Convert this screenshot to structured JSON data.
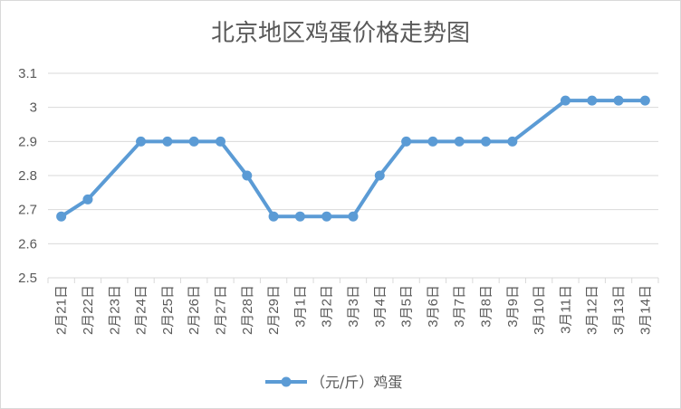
{
  "chart_data": {
    "type": "line",
    "title": "北京地区鸡蛋价格走势图",
    "xlabel": "",
    "ylabel": "",
    "categories": [
      "2月21日",
      "2月22日",
      "2月23日",
      "2月24日",
      "2月25日",
      "2月26日",
      "2月27日",
      "2月28日",
      "2月29日",
      "3月1日",
      "3月2日",
      "3月3日",
      "3月4日",
      "3月5日",
      "3月6日",
      "3月7日",
      "3月8日",
      "3月9日",
      "3月10日",
      "3月11日",
      "3月12日",
      "3月13日",
      "3月14日"
    ],
    "series": [
      {
        "name": "（元/斤）鸡蛋",
        "values": [
          2.68,
          2.73,
          null,
          2.9,
          2.9,
          2.9,
          2.9,
          2.8,
          2.68,
          2.68,
          2.68,
          2.68,
          2.8,
          2.9,
          2.9,
          2.9,
          2.9,
          2.9,
          null,
          3.02,
          3.02,
          3.02,
          3.02
        ]
      }
    ],
    "ylim": [
      2.5,
      3.1
    ],
    "yticks": [
      2.5,
      2.6,
      2.7,
      2.8,
      2.9,
      3,
      3.1
    ],
    "ytick_labels": [
      "2.5",
      "2.6",
      "2.7",
      "2.8",
      "2.9",
      "3",
      "3.1"
    ],
    "grid": true,
    "legend": "bottom",
    "series_color": "#5B9BD5",
    "grid_color": "#d9d9d9",
    "text_color": "#595959"
  }
}
